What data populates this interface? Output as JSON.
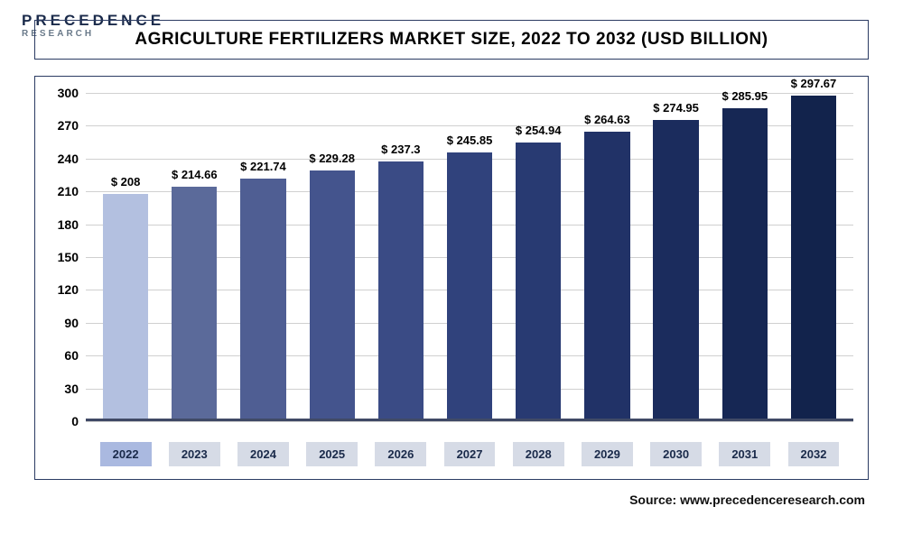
{
  "logo": {
    "line1": "PRECEDENCE",
    "line2": "RESEARCH"
  },
  "title": "AGRICULTURE FERTILIZERS MARKET SIZE, 2022 TO 2032 (USD BILLION)",
  "source": "Source: www.precedenceresearch.com",
  "chart": {
    "type": "bar",
    "ylim": [
      0,
      300
    ],
    "ytick_step": 30,
    "yticks": [
      0,
      30,
      60,
      90,
      120,
      150,
      180,
      210,
      240,
      270,
      300
    ],
    "grid_color": "#d0d0d0",
    "baseline_color": "#404a66",
    "background_color": "#ffffff",
    "label_fontsize": 13,
    "tick_fontsize": 14,
    "title_fontsize": 19,
    "bar_width_pct": 66,
    "categories": [
      "2022",
      "2023",
      "2024",
      "2025",
      "2026",
      "2027",
      "2028",
      "2029",
      "2030",
      "2031",
      "2032"
    ],
    "values": [
      208,
      214.66,
      221.74,
      229.28,
      237.3,
      245.85,
      254.94,
      264.63,
      274.95,
      285.95,
      297.67
    ],
    "value_labels": [
      "$ 208",
      "$ 214.66",
      "$ 221.74",
      "$ 229.28",
      "$ 237.3",
      "$ 245.85",
      "$ 254.94",
      "$ 264.63",
      "$ 274.95",
      "$ 285.95",
      "$ 297.67"
    ],
    "bar_colors": [
      "#b3c0e0",
      "#5b6a9a",
      "#4f5e93",
      "#44548d",
      "#3a4b85",
      "#30427c",
      "#283a72",
      "#213267",
      "#1b2c5d",
      "#162754",
      "#12234c"
    ],
    "highlight_index": 0,
    "x_label_bg": "#d6dbe6",
    "x_label_bg_active": "#aab9e0"
  }
}
